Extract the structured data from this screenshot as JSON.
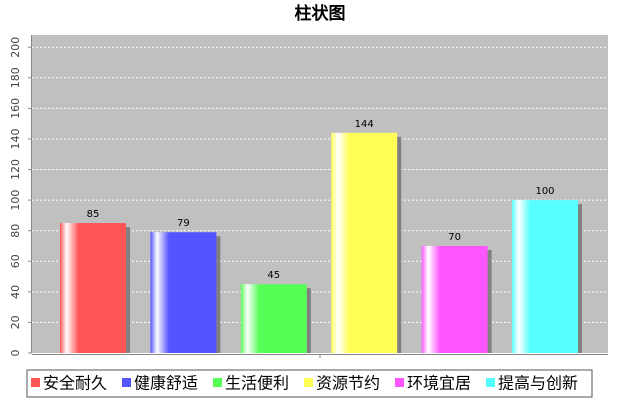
{
  "chart_data": {
    "type": "bar",
    "title": "柱状图",
    "categories": [
      "安全耐久",
      "健康舒适",
      "生活便利",
      "资源节约",
      "环境宜居",
      "提高与创新"
    ],
    "values": [
      85,
      79,
      45,
      144,
      70,
      100
    ],
    "colors": [
      "#ff5555",
      "#5555ff",
      "#55ff55",
      "#ffff55",
      "#ff55ff",
      "#55ffff"
    ],
    "ylim": [
      0,
      208
    ],
    "yticks": [
      0,
      20,
      40,
      60,
      80,
      100,
      120,
      140,
      160,
      180,
      200
    ],
    "grid": true,
    "legend": "bottom"
  }
}
